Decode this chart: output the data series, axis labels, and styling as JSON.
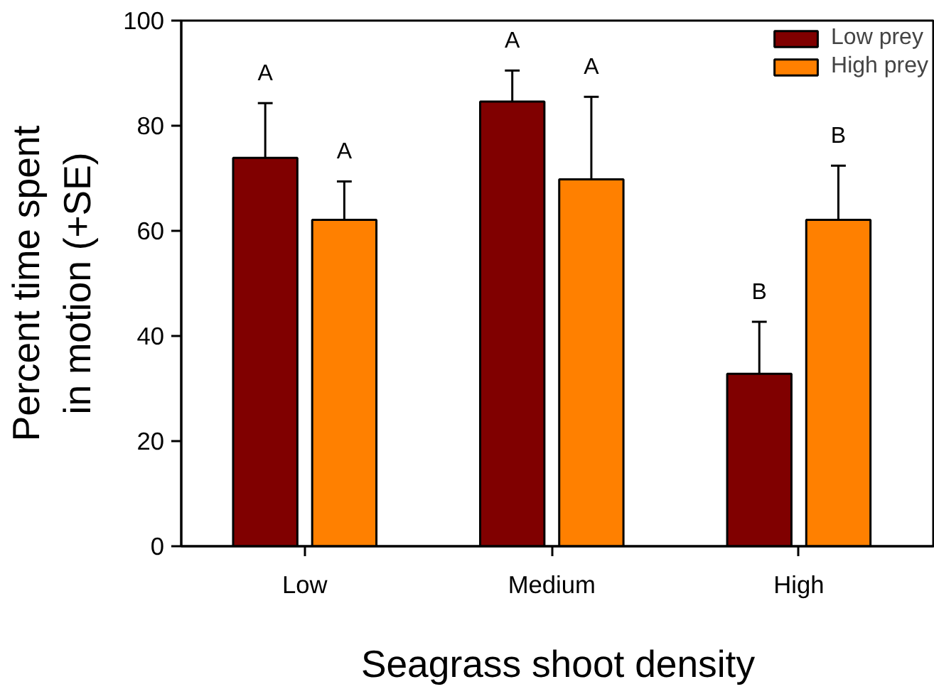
{
  "chart_data": {
    "type": "bar",
    "xlabel": "Seagrass shoot density",
    "ylabel": "Percent time spent\nin motion (+SE)",
    "categories": [
      "Low",
      "Medium",
      "High"
    ],
    "series": [
      {
        "name": "Low prey",
        "color": "#800000",
        "values": [
          73.9,
          84.6,
          32.8
        ],
        "errors": [
          [
            73.9,
            84.3
          ],
          [
            84.6,
            90.5
          ],
          [
            32.8,
            42.7
          ]
        ]
      },
      {
        "name": "High prey",
        "color": "#ff8000",
        "values": [
          62.1,
          69.8,
          62.1
        ],
        "errors": [
          [
            62.1,
            69.4
          ],
          [
            69.8,
            85.5
          ],
          [
            62.1,
            72.4
          ]
        ]
      }
    ],
    "ylim": [
      0,
      100
    ],
    "yticks": [
      0,
      20,
      40,
      60,
      80,
      100
    ],
    "grid": false,
    "legend": "top right",
    "annotations": [
      "A",
      "A",
      "A",
      "A",
      "B",
      "B"
    ]
  }
}
